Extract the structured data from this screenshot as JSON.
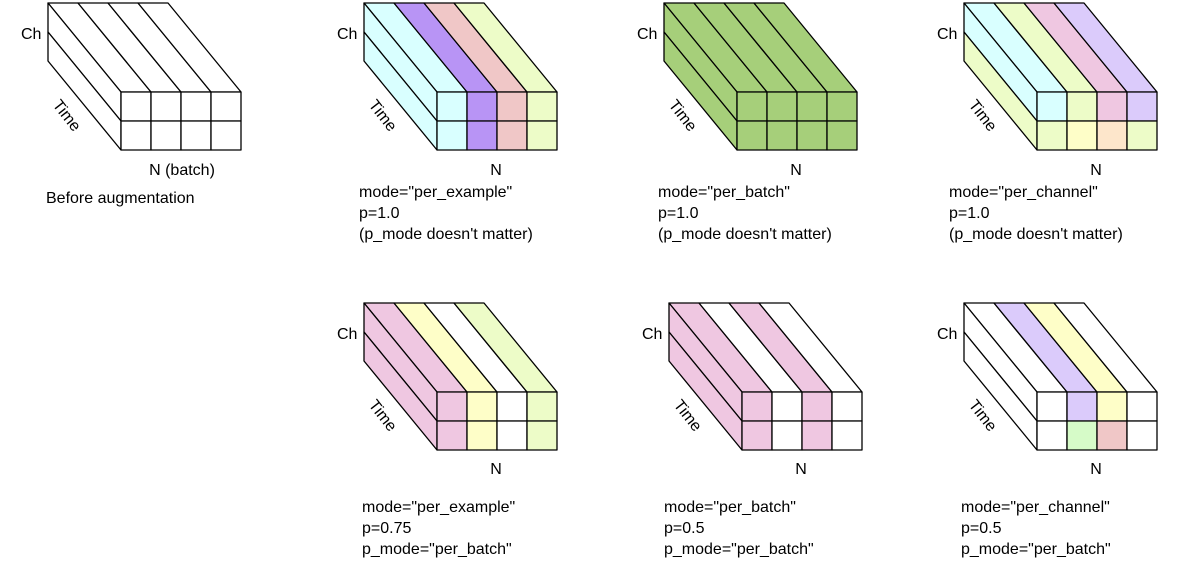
{
  "colors": {
    "white": "#ffffff",
    "cyan": "#d9ffff",
    "purple": "#b894f5",
    "pink": "#f0c7c7",
    "lime": "#edfcc8",
    "green": "#a6cf7a",
    "yellow": "#fefec8",
    "lavender": "#dbcbfb",
    "magenta": "#efc7e1",
    "peach": "#fde6cb",
    "mint": "#d6fbc8",
    "line": "#000000"
  },
  "labels": {
    "ch": "Ch",
    "time": "Time",
    "n": "N",
    "n_batch": "N (batch)"
  },
  "panels": [
    {
      "id": "before",
      "n_label": "N (batch)",
      "caption": [
        "Before augmentation"
      ],
      "top_strips": [
        "white",
        "white",
        "white",
        "white"
      ],
      "side_strips": [
        "white",
        "white"
      ],
      "front_cells": [
        [
          "white",
          "white",
          "white",
          "white"
        ],
        [
          "white",
          "white",
          "white",
          "white"
        ]
      ]
    },
    {
      "id": "per-example-p1",
      "n_label": "N",
      "caption": [
        "mode=\"per_example\"",
        "p=1.0",
        "(p_mode doesn't matter)"
      ],
      "top_strips": [
        "cyan",
        "purple",
        "pink",
        "lime"
      ],
      "side_strips": [
        "cyan",
        "cyan"
      ],
      "front_cells": [
        [
          "cyan",
          "purple",
          "pink",
          "lime"
        ],
        [
          "cyan",
          "purple",
          "pink",
          "lime"
        ]
      ]
    },
    {
      "id": "per-batch-p1",
      "n_label": "N",
      "caption": [
        "mode=\"per_batch\"",
        "p=1.0",
        "(p_mode doesn't matter)"
      ],
      "top_strips": [
        "green",
        "green",
        "green",
        "green"
      ],
      "side_strips": [
        "green",
        "green"
      ],
      "front_cells": [
        [
          "green",
          "green",
          "green",
          "green"
        ],
        [
          "green",
          "green",
          "green",
          "green"
        ]
      ]
    },
    {
      "id": "per-channel-p1",
      "n_label": "N",
      "caption": [
        "mode=\"per_channel\"",
        "p=1.0",
        "(p_mode doesn't matter)"
      ],
      "top_strips": [
        "cyan",
        "lime",
        "magenta",
        "lavender"
      ],
      "side_strips": [
        "cyan",
        "lime"
      ],
      "front_cells": [
        [
          "cyan",
          "lime",
          "magenta",
          "lavender"
        ],
        [
          "lime",
          "yellow",
          "peach",
          "lime"
        ]
      ]
    },
    {
      "id": "per-example-p075",
      "n_label": "N",
      "caption": [
        "mode=\"per_example\"",
        "p=0.75",
        "p_mode=\"per_batch\""
      ],
      "top_strips": [
        "magenta",
        "yellow",
        "white",
        "lime"
      ],
      "side_strips": [
        "magenta",
        "magenta"
      ],
      "front_cells": [
        [
          "magenta",
          "yellow",
          "white",
          "lime"
        ],
        [
          "magenta",
          "yellow",
          "white",
          "lime"
        ]
      ]
    },
    {
      "id": "per-batch-p05",
      "n_label": "N",
      "caption": [
        "mode=\"per_batch\"",
        "p=0.5",
        "p_mode=\"per_batch\""
      ],
      "top_strips": [
        "magenta",
        "white",
        "magenta",
        "white"
      ],
      "side_strips": [
        "magenta",
        "magenta"
      ],
      "front_cells": [
        [
          "magenta",
          "white",
          "magenta",
          "white"
        ],
        [
          "magenta",
          "white",
          "magenta",
          "white"
        ]
      ]
    },
    {
      "id": "per-channel-p05",
      "n_label": "N",
      "caption": [
        "mode=\"per_channel\"",
        "p=0.5",
        "p_mode=\"per_batch\""
      ],
      "top_strips": [
        "white",
        "lavender",
        "yellow",
        "white"
      ],
      "side_strips": [
        "white",
        "white"
      ],
      "front_cells": [
        [
          "white",
          "lavender",
          "yellow",
          "white"
        ],
        [
          "white",
          "mint",
          "pink",
          "white"
        ]
      ]
    }
  ]
}
